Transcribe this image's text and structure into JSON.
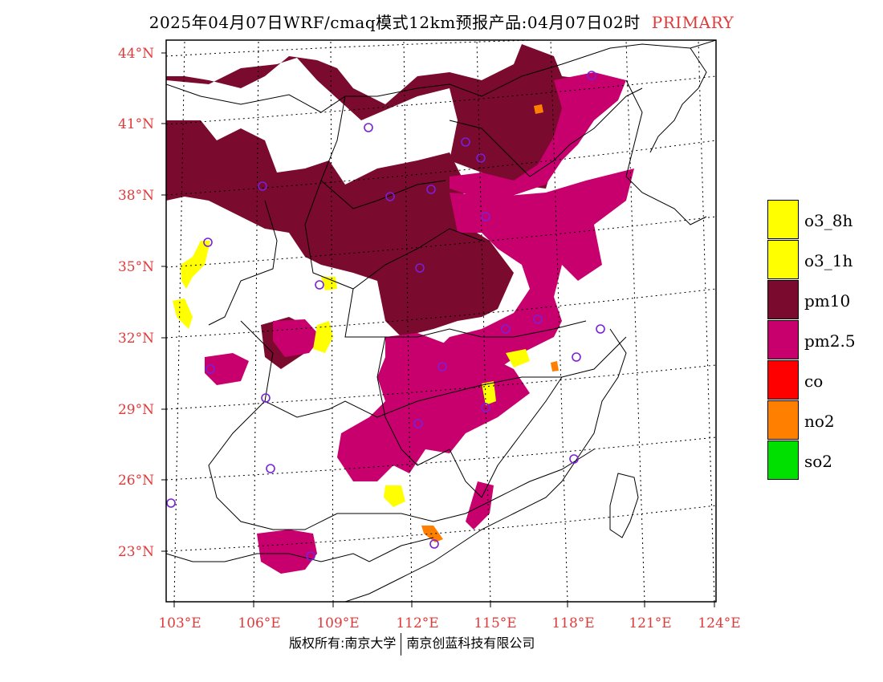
{
  "title": {
    "main": "2025年04月07日WRF/cmaq模式12km预报产品:04月07日02时",
    "tag": "PRIMARY"
  },
  "axes": {
    "lat_labels": [
      "44°N",
      "41°N",
      "38°N",
      "35°N",
      "32°N",
      "29°N",
      "26°N",
      "23°N"
    ],
    "lon_labels": [
      "103°E",
      "106°E",
      "109°E",
      "112°E",
      "115°E",
      "118°E",
      "121°E",
      "124°E"
    ],
    "label_color": "#e03a3a"
  },
  "legend": [
    {
      "label": "o3_8h",
      "color": "#ffff00"
    },
    {
      "label": "o3_1h",
      "color": "#ffff00"
    },
    {
      "label": "pm10",
      "color": "#7a0a2e"
    },
    {
      "label": "pm2.5",
      "color": "#c8006e"
    },
    {
      "label": "co",
      "color": "#ff0000"
    },
    {
      "label": "no2",
      "color": "#ff8000"
    },
    {
      "label": "so2",
      "color": "#00e000"
    }
  ],
  "footer": {
    "left": "版权所有:南京大学",
    "right": "南京创蓝科技有限公司"
  }
}
